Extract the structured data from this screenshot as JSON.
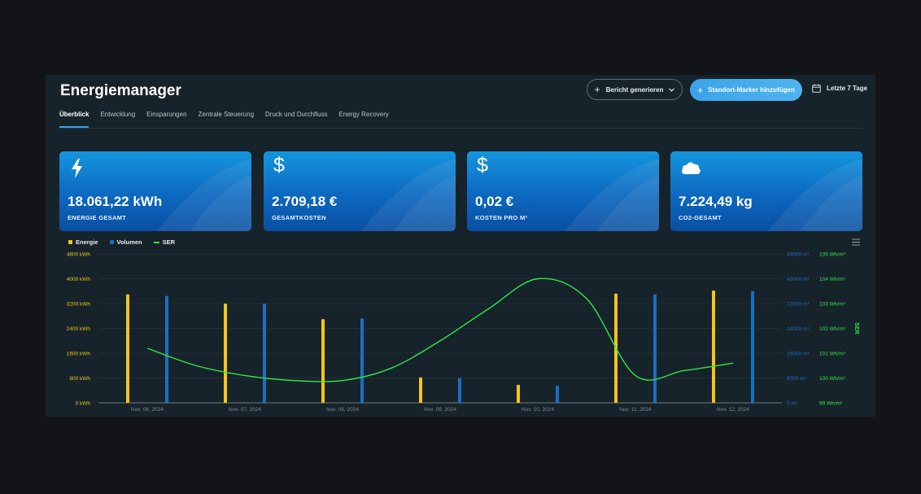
{
  "app": {
    "title": "Energiemanager",
    "report_button": "Bericht generieren",
    "marker_button": "Standort-Marker hinzufügen",
    "date_range": "Letzte 7 Tage"
  },
  "tabs": [
    {
      "label": "Überblick",
      "active": true
    },
    {
      "label": "Entwicklung",
      "active": false
    },
    {
      "label": "Einsparungen",
      "active": false
    },
    {
      "label": "Zentrale Steuerung",
      "active": false
    },
    {
      "label": "Druck und Durchfluss",
      "active": false
    },
    {
      "label": "Energy Recovery",
      "active": false
    }
  ],
  "cards": [
    {
      "icon": "lightning-icon",
      "value": "18.061,22 kWh",
      "label": "ENERGIE GESAMT"
    },
    {
      "icon": "dollar-icon",
      "value": "2.709,18 €",
      "label": "GESAMTKOSTEN"
    },
    {
      "icon": "dollar-icon",
      "value": "0,02 €",
      "label": "KOSTEN PRO M³"
    },
    {
      "icon": "cloud-icon",
      "value": "7.224,49 kg",
      "label": "CO2-GESAMT"
    }
  ],
  "colors": {
    "energie": "#f5c518",
    "volumen": "#1a6fc2",
    "ser": "#2ee84a",
    "accent": "#3aa3e8"
  },
  "chart_data": {
    "type": "bar",
    "categories": [
      "Nov. 06, 2024",
      "Nov. 07, 2024",
      "Nov. 08, 2024",
      "Nov. 09, 2024",
      "Nov. 10, 2024",
      "Nov. 11, 2024",
      "Nov. 12, 2024"
    ],
    "series": [
      {
        "name": "Energie",
        "type": "bar",
        "axis": "left",
        "values": [
          3500,
          3200,
          2700,
          820,
          580,
          3520,
          3620
        ]
      },
      {
        "name": "Volumen",
        "type": "bar",
        "axis": "right1",
        "values": [
          34500,
          32000,
          27200,
          8000,
          5500,
          35000,
          36000
        ]
      },
      {
        "name": "SER",
        "type": "line",
        "axis": "right2",
        "x": [
          0,
          0.5,
          1,
          1.5,
          2,
          2.5,
          3,
          3.5,
          4,
          4.5,
          5,
          5.5,
          6
        ],
        "values": [
          101.2,
          100.5,
          100.1,
          99.9,
          99.9,
          100.4,
          101.5,
          102.8,
          104.0,
          103.2,
          100.1,
          100.3,
          100.6
        ]
      }
    ],
    "left_axis": {
      "ticks": [
        "0 kWh",
        "800 kWh",
        "1600 kWh",
        "2400 kWh",
        "3200 kWh",
        "4000 kWh",
        "4800 kWh"
      ],
      "range": [
        0,
        4800
      ]
    },
    "right_axis_1": {
      "ticks": [
        "0 m³",
        "8000 m³",
        "16000 m³",
        "24000 m³",
        "32000 m³",
        "40000 m³",
        "48000 m³"
      ],
      "range": [
        0,
        48000
      ]
    },
    "right_axis_2": {
      "label": "SER",
      "ticks": [
        "99 Wh/m³",
        "100 Wh/m³",
        "101 Wh/m³",
        "102 Wh/m³",
        "103 Wh/m³",
        "104 Wh/m³",
        "105 Wh/m³"
      ],
      "range": [
        99,
        105
      ]
    },
    "legend": [
      "Energie",
      "Volumen",
      "SER"
    ],
    "legend_position": "top-left",
    "grid": true
  }
}
